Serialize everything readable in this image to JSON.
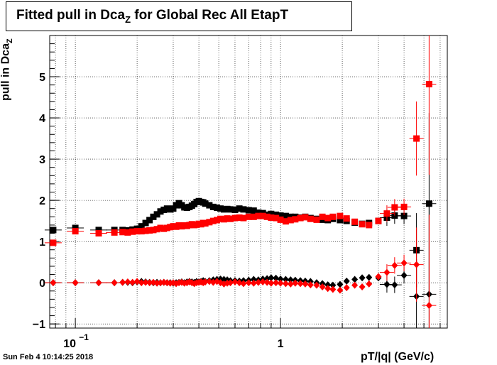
{
  "title": {
    "main": "Fitted pull in Dca",
    "sub": "Z",
    "rest": " for Global Rec All EtapT"
  },
  "ylabel": {
    "main": "pull in Dca",
    "sub": "Z"
  },
  "xlabel": "pT/|q| (GeV/c)",
  "timestamp": "Sun Feb  4 10:14:25 2018",
  "chart_data": {
    "type": "scatter",
    "xscale": "log",
    "xlim": [
      0.075,
      6.5
    ],
    "ylim": [
      -1.1,
      6.0
    ],
    "x_ticks": [
      {
        "v": 0.1,
        "label": "10",
        "exp": "−1"
      },
      {
        "v": 1,
        "label": "1",
        "exp": ""
      }
    ],
    "y_ticks": [
      -1,
      0,
      1,
      2,
      3,
      4,
      5
    ],
    "grid": true,
    "series": [
      {
        "color": "#000000",
        "marker": "square",
        "points": [
          [
            0.078,
            1.28
          ],
          [
            0.1,
            1.33
          ],
          [
            0.13,
            1.28
          ],
          [
            0.155,
            1.28
          ],
          [
            0.17,
            1.28
          ],
          [
            0.18,
            1.27
          ],
          [
            0.19,
            1.29
          ],
          [
            0.2,
            1.31
          ],
          [
            0.21,
            1.37
          ],
          [
            0.22,
            1.45
          ],
          [
            0.23,
            1.52
          ],
          [
            0.24,
            1.6
          ],
          [
            0.25,
            1.66
          ],
          [
            0.26,
            1.73
          ],
          [
            0.27,
            1.77
          ],
          [
            0.28,
            1.8
          ],
          [
            0.29,
            1.78
          ],
          [
            0.3,
            1.8
          ],
          [
            0.31,
            1.88
          ],
          [
            0.32,
            1.93
          ],
          [
            0.33,
            1.88
          ],
          [
            0.34,
            1.83
          ],
          [
            0.35,
            1.82
          ],
          [
            0.36,
            1.84
          ],
          [
            0.37,
            1.87
          ],
          [
            0.38,
            1.91
          ],
          [
            0.39,
            1.96
          ],
          [
            0.4,
            1.98
          ],
          [
            0.41,
            1.96
          ],
          [
            0.42,
            1.95
          ],
          [
            0.43,
            1.92
          ],
          [
            0.45,
            1.88
          ],
          [
            0.47,
            1.84
          ],
          [
            0.49,
            1.82
          ],
          [
            0.51,
            1.8
          ],
          [
            0.53,
            1.78
          ],
          [
            0.55,
            1.79
          ],
          [
            0.57,
            1.78
          ],
          [
            0.6,
            1.77
          ],
          [
            0.63,
            1.8
          ],
          [
            0.66,
            1.78
          ],
          [
            0.7,
            1.76
          ],
          [
            0.74,
            1.75
          ],
          [
            0.78,
            1.7
          ],
          [
            0.82,
            1.69
          ],
          [
            0.86,
            1.65
          ],
          [
            0.9,
            1.67
          ],
          [
            0.95,
            1.65
          ],
          [
            1.0,
            1.63
          ],
          [
            1.06,
            1.62
          ],
          [
            1.12,
            1.6
          ],
          [
            1.18,
            1.6
          ],
          [
            1.25,
            1.58
          ],
          [
            1.32,
            1.6
          ],
          [
            1.4,
            1.57
          ],
          [
            1.5,
            1.55
          ],
          [
            1.6,
            1.53
          ],
          [
            1.7,
            1.52
          ],
          [
            1.8,
            1.55
          ],
          [
            1.95,
            1.52
          ],
          [
            2.1,
            1.5
          ],
          [
            2.3,
            1.46
          ],
          [
            2.5,
            1.43
          ],
          [
            2.7,
            1.45
          ],
          [
            3.0,
            1.5
          ],
          [
            3.3,
            1.58
          ],
          [
            3.6,
            1.63
          ],
          [
            4.0,
            1.62
          ],
          [
            4.6,
            0.79
          ],
          [
            5.3,
            1.92
          ]
        ]
      },
      {
        "color": "#ff0000",
        "marker": "square",
        "points": [
          [
            0.078,
            0.97
          ],
          [
            0.1,
            1.25
          ],
          [
            0.13,
            1.2
          ],
          [
            0.155,
            1.22
          ],
          [
            0.17,
            1.23
          ],
          [
            0.18,
            1.22
          ],
          [
            0.19,
            1.24
          ],
          [
            0.2,
            1.25
          ],
          [
            0.21,
            1.25
          ],
          [
            0.22,
            1.26
          ],
          [
            0.23,
            1.27
          ],
          [
            0.24,
            1.28
          ],
          [
            0.25,
            1.3
          ],
          [
            0.26,
            1.33
          ],
          [
            0.27,
            1.31
          ],
          [
            0.28,
            1.33
          ],
          [
            0.29,
            1.35
          ],
          [
            0.3,
            1.37
          ],
          [
            0.31,
            1.36
          ],
          [
            0.32,
            1.39
          ],
          [
            0.33,
            1.37
          ],
          [
            0.34,
            1.39
          ],
          [
            0.35,
            1.38
          ],
          [
            0.36,
            1.4
          ],
          [
            0.37,
            1.42
          ],
          [
            0.38,
            1.4
          ],
          [
            0.39,
            1.41
          ],
          [
            0.4,
            1.43
          ],
          [
            0.41,
            1.42
          ],
          [
            0.42,
            1.45
          ],
          [
            0.43,
            1.44
          ],
          [
            0.45,
            1.47
          ],
          [
            0.47,
            1.5
          ],
          [
            0.49,
            1.52
          ],
          [
            0.51,
            1.55
          ],
          [
            0.53,
            1.54
          ],
          [
            0.55,
            1.56
          ],
          [
            0.57,
            1.55
          ],
          [
            0.6,
            1.57
          ],
          [
            0.63,
            1.58
          ],
          [
            0.66,
            1.57
          ],
          [
            0.7,
            1.6
          ],
          [
            0.74,
            1.6
          ],
          [
            0.78,
            1.62
          ],
          [
            0.82,
            1.62
          ],
          [
            0.86,
            1.6
          ],
          [
            0.9,
            1.58
          ],
          [
            0.95,
            1.57
          ],
          [
            1.0,
            1.53
          ],
          [
            1.06,
            1.49
          ],
          [
            1.12,
            1.52
          ],
          [
            1.18,
            1.54
          ],
          [
            1.25,
            1.57
          ],
          [
            1.32,
            1.59
          ],
          [
            1.4,
            1.55
          ],
          [
            1.5,
            1.53
          ],
          [
            1.6,
            1.6
          ],
          [
            1.7,
            1.57
          ],
          [
            1.8,
            1.6
          ],
          [
            1.95,
            1.62
          ],
          [
            2.1,
            1.56
          ],
          [
            2.3,
            1.48
          ],
          [
            2.5,
            1.42
          ],
          [
            2.7,
            1.4
          ],
          [
            3.0,
            1.5
          ],
          [
            3.3,
            1.68
          ],
          [
            3.6,
            1.83
          ],
          [
            4.0,
            1.84
          ],
          [
            4.6,
            3.5
          ],
          [
            5.3,
            4.82
          ]
        ]
      },
      {
        "color": "#000000",
        "marker": "diamond",
        "points": [
          [
            0.078,
            0.0
          ],
          [
            0.1,
            0.0
          ],
          [
            0.13,
            0.0
          ],
          [
            0.155,
            0.0
          ],
          [
            0.17,
            0.01
          ],
          [
            0.18,
            0.01
          ],
          [
            0.19,
            0.0
          ],
          [
            0.2,
            0.02
          ],
          [
            0.21,
            0.03
          ],
          [
            0.22,
            0.02
          ],
          [
            0.23,
            0.01
          ],
          [
            0.24,
            0.0
          ],
          [
            0.25,
            0.01
          ],
          [
            0.26,
            0.0
          ],
          [
            0.27,
            0.01
          ],
          [
            0.28,
            0.0
          ],
          [
            0.29,
            0.0
          ],
          [
            0.3,
            -0.01
          ],
          [
            0.31,
            0.0
          ],
          [
            0.32,
            0.01
          ],
          [
            0.33,
            0.02
          ],
          [
            0.34,
            0.0
          ],
          [
            0.35,
            0.02
          ],
          [
            0.36,
            0.03
          ],
          [
            0.37,
            0.02
          ],
          [
            0.38,
            0.01
          ],
          [
            0.39,
            0.03
          ],
          [
            0.4,
            0.02
          ],
          [
            0.41,
            0.03
          ],
          [
            0.42,
            0.05
          ],
          [
            0.43,
            0.03
          ],
          [
            0.45,
            0.05
          ],
          [
            0.47,
            0.07
          ],
          [
            0.49,
            0.08
          ],
          [
            0.51,
            0.09
          ],
          [
            0.53,
            0.08
          ],
          [
            0.55,
            0.07
          ],
          [
            0.57,
            0.05
          ],
          [
            0.6,
            0.05
          ],
          [
            0.63,
            0.04
          ],
          [
            0.66,
            0.05
          ],
          [
            0.7,
            0.06
          ],
          [
            0.74,
            0.08
          ],
          [
            0.78,
            0.07
          ],
          [
            0.82,
            0.09
          ],
          [
            0.86,
            0.1
          ],
          [
            0.9,
            0.12
          ],
          [
            0.95,
            0.11
          ],
          [
            1.0,
            0.09
          ],
          [
            1.06,
            0.08
          ],
          [
            1.12,
            0.07
          ],
          [
            1.18,
            0.06
          ],
          [
            1.25,
            0.05
          ],
          [
            1.32,
            0.04
          ],
          [
            1.4,
            0.03
          ],
          [
            1.5,
            0.0
          ],
          [
            1.6,
            -0.02
          ],
          [
            1.7,
            -0.05
          ],
          [
            1.8,
            -0.06
          ],
          [
            1.95,
            -0.04
          ],
          [
            2.1,
            0.04
          ],
          [
            2.3,
            0.08
          ],
          [
            2.5,
            0.12
          ],
          [
            2.7,
            0.13
          ],
          [
            3.0,
            0.12
          ],
          [
            3.3,
            -0.04
          ],
          [
            3.6,
            -0.05
          ],
          [
            4.0,
            0.18
          ],
          [
            4.6,
            -0.33
          ],
          [
            5.3,
            -0.28
          ]
        ]
      },
      {
        "color": "#ff0000",
        "marker": "diamond",
        "points": [
          [
            0.078,
            0.0
          ],
          [
            0.1,
            0.0
          ],
          [
            0.13,
            0.0
          ],
          [
            0.155,
            0.0
          ],
          [
            0.17,
            0.01
          ],
          [
            0.18,
            0.02
          ],
          [
            0.19,
            0.01
          ],
          [
            0.2,
            0.03
          ],
          [
            0.21,
            0.0
          ],
          [
            0.22,
            0.01
          ],
          [
            0.23,
            0.0
          ],
          [
            0.24,
            0.01
          ],
          [
            0.25,
            -0.01
          ],
          [
            0.26,
            0.0
          ],
          [
            0.27,
            0.01
          ],
          [
            0.28,
            0.0
          ],
          [
            0.29,
            -0.01
          ],
          [
            0.3,
            0.0
          ],
          [
            0.31,
            -0.02
          ],
          [
            0.32,
            0.0
          ],
          [
            0.33,
            0.01
          ],
          [
            0.34,
            -0.01
          ],
          [
            0.35,
            0.0
          ],
          [
            0.36,
            0.02
          ],
          [
            0.37,
            0.0
          ],
          [
            0.38,
            -0.02
          ],
          [
            0.39,
            0.0
          ],
          [
            0.4,
            0.01
          ],
          [
            0.41,
            0.02
          ],
          [
            0.42,
            0.0
          ],
          [
            0.43,
            0.02
          ],
          [
            0.45,
            0.03
          ],
          [
            0.47,
            0.01
          ],
          [
            0.49,
            0.03
          ],
          [
            0.51,
            0.0
          ],
          [
            0.53,
            -0.03
          ],
          [
            0.55,
            -0.01
          ],
          [
            0.57,
            0.0
          ],
          [
            0.6,
            0.02
          ],
          [
            0.63,
            0.0
          ],
          [
            0.66,
            -0.02
          ],
          [
            0.7,
            0.0
          ],
          [
            0.74,
            -0.01
          ],
          [
            0.78,
            0.01
          ],
          [
            0.82,
            0.02
          ],
          [
            0.86,
            0.01
          ],
          [
            0.9,
            -0.01
          ],
          [
            0.95,
            0.0
          ],
          [
            1.0,
            -0.01
          ],
          [
            1.06,
            -0.02
          ],
          [
            1.12,
            -0.03
          ],
          [
            1.18,
            -0.01
          ],
          [
            1.25,
            -0.02
          ],
          [
            1.32,
            -0.03
          ],
          [
            1.4,
            -0.05
          ],
          [
            1.5,
            -0.06
          ],
          [
            1.6,
            -0.1
          ],
          [
            1.7,
            -0.14
          ],
          [
            1.8,
            -0.16
          ],
          [
            1.95,
            -0.18
          ],
          [
            2.1,
            -0.12
          ],
          [
            2.3,
            -0.06
          ],
          [
            2.5,
            -0.1
          ],
          [
            2.7,
            -0.03
          ],
          [
            3.0,
            0.15
          ],
          [
            3.3,
            0.25
          ],
          [
            3.6,
            0.42
          ],
          [
            4.0,
            0.48
          ],
          [
            4.6,
            0.44
          ],
          [
            5.3,
            -0.55
          ]
        ]
      }
    ]
  }
}
